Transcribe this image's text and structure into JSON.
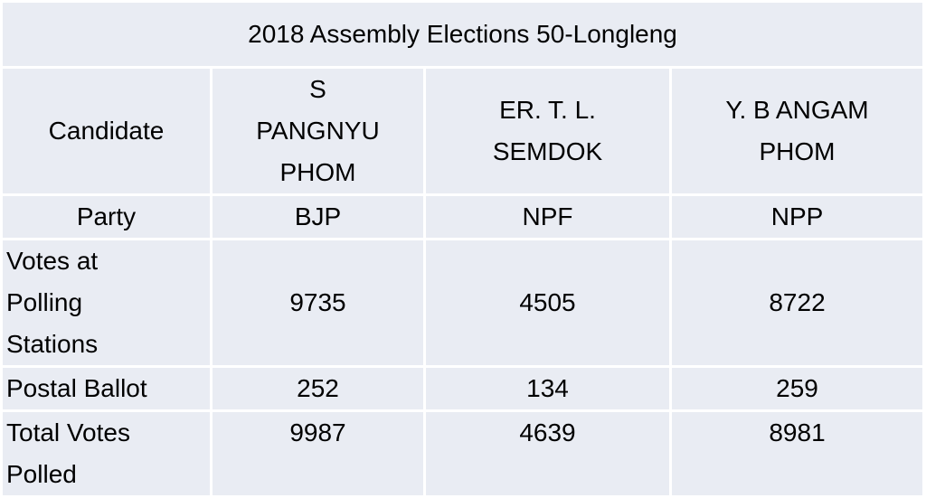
{
  "table": {
    "title": "2018 Assembly Elections 50-Longleng",
    "rows": [
      [
        "Candidate",
        "S PANGNYU PHOM",
        "ER. T. L. SEMDOK",
        "Y. B ANGAM PHOM"
      ],
      [
        "Party",
        "BJP",
        "NPF",
        "NPP"
      ],
      [
        "Votes at Polling Stations",
        9735,
        4505,
        8722
      ],
      [
        "Postal Ballot",
        252,
        134,
        259
      ],
      [
        "Total Votes Polled",
        9987,
        4639,
        8981
      ]
    ]
  }
}
